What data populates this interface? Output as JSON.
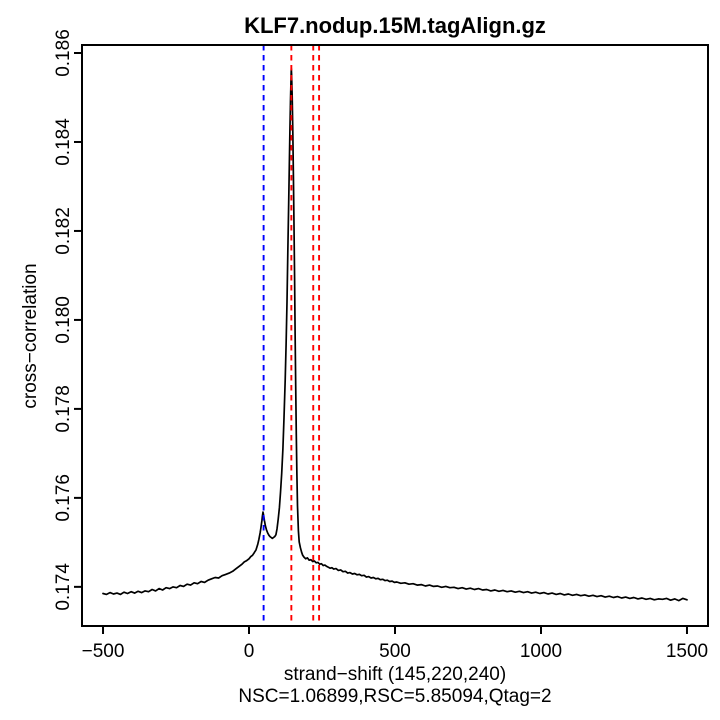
{
  "page": {
    "background": "#ffffff"
  },
  "chart_data": {
    "type": "line",
    "title": "KLF7.nodup.15M.tagAlign.gz",
    "xlabel": "strand−shift (145,220,240)",
    "xlabel_line2": "NSC=1.06899,RSC=5.85094,Qtag=2",
    "ylabel": "cross−correlation",
    "xlim": [
      -572,
      1572
    ],
    "ylim": [
      0.17312,
      0.18618
    ],
    "grid": false,
    "legend_position": "none",
    "axis_color": "#000000",
    "background_color": "#ffffff",
    "x_ticks": [
      -500,
      0,
      500,
      1000,
      1500
    ],
    "x_tick_labels": [
      "−500",
      "0",
      "500",
      "1000",
      "1500"
    ],
    "y_ticks": [
      0.174,
      0.176,
      0.178,
      0.18,
      0.182,
      0.184,
      0.186
    ],
    "y_tick_labels": [
      "0.174",
      "0.176",
      "0.178",
      "0.180",
      "0.182",
      "0.184",
      "0.186"
    ],
    "metrics": {
      "nsc": "1.06899",
      "rsc": "5.85094",
      "qtag": "2",
      "peak_strand_shifts": [
        145,
        220,
        240
      ],
      "phantom_peak_shift": 50
    },
    "vlines": [
      {
        "x": 50,
        "color": "#0000ff",
        "style": "dashed",
        "name": "phantom-peak-line"
      },
      {
        "x": 145,
        "color": "#ff0000",
        "style": "dashed",
        "name": "peak-shift-line-145"
      },
      {
        "x": 220,
        "color": "#ff0000",
        "style": "dashed",
        "name": "peak-shift-line-220"
      },
      {
        "x": 240,
        "color": "#ff0000",
        "style": "dashed",
        "name": "peak-shift-line-240"
      }
    ],
    "series": [
      {
        "name": "cross-correlation",
        "color": "#000000",
        "points": [
          [
            -500,
            0.17385
          ],
          [
            -488,
            0.17383
          ],
          [
            -476,
            0.17387
          ],
          [
            -464,
            0.17384
          ],
          [
            -452,
            0.17386
          ],
          [
            -440,
            0.17383
          ],
          [
            -428,
            0.17388
          ],
          [
            -416,
            0.17385
          ],
          [
            -404,
            0.17389
          ],
          [
            -392,
            0.17386
          ],
          [
            -380,
            0.1739
          ],
          [
            -368,
            0.17387
          ],
          [
            -356,
            0.17391
          ],
          [
            -344,
            0.17389
          ],
          [
            -332,
            0.17394
          ],
          [
            -320,
            0.17391
          ],
          [
            -308,
            0.17396
          ],
          [
            -296,
            0.17393
          ],
          [
            -284,
            0.17398
          ],
          [
            -272,
            0.17396
          ],
          [
            -260,
            0.174
          ],
          [
            -248,
            0.17398
          ],
          [
            -236,
            0.17403
          ],
          [
            -224,
            0.17401
          ],
          [
            -212,
            0.17406
          ],
          [
            -200,
            0.17404
          ],
          [
            -188,
            0.17409
          ],
          [
            -176,
            0.17407
          ],
          [
            -164,
            0.17412
          ],
          [
            -152,
            0.1741
          ],
          [
            -140,
            0.17415
          ],
          [
            -128,
            0.17418
          ],
          [
            -116,
            0.17421
          ],
          [
            -104,
            0.1742
          ],
          [
            -92,
            0.17425
          ],
          [
            -80,
            0.17428
          ],
          [
            -68,
            0.17431
          ],
          [
            -56,
            0.17435
          ],
          [
            -44,
            0.17441
          ],
          [
            -32,
            0.17447
          ],
          [
            -24,
            0.17451
          ],
          [
            -16,
            0.17456
          ],
          [
            -8,
            0.17459
          ],
          [
            0,
            0.17463
          ],
          [
            6,
            0.17468
          ],
          [
            12,
            0.17471
          ],
          [
            18,
            0.17477
          ],
          [
            24,
            0.17483
          ],
          [
            30,
            0.17496
          ],
          [
            34,
            0.17507
          ],
          [
            38,
            0.17521
          ],
          [
            41,
            0.17534
          ],
          [
            44,
            0.17549
          ],
          [
            46,
            0.17559
          ],
          [
            48,
            0.17568
          ],
          [
            50,
            0.17561
          ],
          [
            53,
            0.17548
          ],
          [
            56,
            0.17537
          ],
          [
            60,
            0.17528
          ],
          [
            64,
            0.17521
          ],
          [
            68,
            0.17516
          ],
          [
            72,
            0.17513
          ],
          [
            76,
            0.17511
          ],
          [
            80,
            0.17509
          ],
          [
            84,
            0.17511
          ],
          [
            88,
            0.17513
          ],
          [
            92,
            0.17517
          ],
          [
            96,
            0.1753
          ],
          [
            100,
            0.17552
          ],
          [
            104,
            0.17578
          ],
          [
            108,
            0.17612
          ],
          [
            112,
            0.17655
          ],
          [
            116,
            0.1771
          ],
          [
            120,
            0.1778
          ],
          [
            124,
            0.17865
          ],
          [
            127,
            0.17945
          ],
          [
            130,
            0.1804
          ],
          [
            133,
            0.1815
          ],
          [
            136,
            0.18265
          ],
          [
            138,
            0.18345
          ],
          [
            140,
            0.18425
          ],
          [
            142,
            0.18495
          ],
          [
            144,
            0.18548
          ],
          [
            145,
            0.18565
          ],
          [
            146,
            0.18552
          ],
          [
            148,
            0.18502
          ],
          [
            150,
            0.18425
          ],
          [
            152,
            0.18325
          ],
          [
            154,
            0.18212
          ],
          [
            156,
            0.18092
          ],
          [
            158,
            0.17972
          ],
          [
            160,
            0.17852
          ],
          [
            162,
            0.17742
          ],
          [
            164,
            0.17652
          ],
          [
            166,
            0.17582
          ],
          [
            169,
            0.17526
          ],
          [
            172,
            0.17501
          ],
          [
            176,
            0.17488
          ],
          [
            180,
            0.17478
          ],
          [
            184,
            0.17471
          ],
          [
            188,
            0.17467
          ],
          [
            194,
            0.17463
          ],
          [
            200,
            0.17465
          ],
          [
            206,
            0.1746
          ],
          [
            212,
            0.17461
          ],
          [
            218,
            0.17457
          ],
          [
            224,
            0.17458
          ],
          [
            230,
            0.17454
          ],
          [
            236,
            0.17455
          ],
          [
            242,
            0.17451
          ],
          [
            248,
            0.17452
          ],
          [
            254,
            0.17448
          ],
          [
            260,
            0.17449
          ],
          [
            266,
            0.17446
          ],
          [
            272,
            0.17444
          ],
          [
            278,
            0.17442
          ],
          [
            284,
            0.17443
          ],
          [
            290,
            0.1744
          ],
          [
            298,
            0.17441
          ],
          [
            306,
            0.17437
          ],
          [
            314,
            0.17438
          ],
          [
            322,
            0.17434
          ],
          [
            330,
            0.17435
          ],
          [
            338,
            0.17431
          ],
          [
            346,
            0.17432
          ],
          [
            354,
            0.17429
          ],
          [
            362,
            0.1743
          ],
          [
            370,
            0.17427
          ],
          [
            378,
            0.17428
          ],
          [
            386,
            0.17425
          ],
          [
            394,
            0.17426
          ],
          [
            402,
            0.17422
          ],
          [
            410,
            0.17423
          ],
          [
            418,
            0.1742
          ],
          [
            426,
            0.17421
          ],
          [
            434,
            0.17418
          ],
          [
            442,
            0.17419
          ],
          [
            450,
            0.17416
          ],
          [
            458,
            0.17417
          ],
          [
            466,
            0.17414
          ],
          [
            474,
            0.17415
          ],
          [
            482,
            0.17412
          ],
          [
            490,
            0.17413
          ],
          [
            498,
            0.1741
          ],
          [
            506,
            0.17411
          ],
          [
            520,
            0.17408
          ],
          [
            534,
            0.17409
          ],
          [
            548,
            0.17406
          ],
          [
            562,
            0.17407
          ],
          [
            576,
            0.17404
          ],
          [
            590,
            0.17405
          ],
          [
            604,
            0.17402
          ],
          [
            618,
            0.17404
          ],
          [
            632,
            0.17401
          ],
          [
            646,
            0.17402
          ],
          [
            660,
            0.17399
          ],
          [
            674,
            0.17401
          ],
          [
            688,
            0.17398
          ],
          [
            702,
            0.17399
          ],
          [
            716,
            0.17396
          ],
          [
            730,
            0.17398
          ],
          [
            744,
            0.17395
          ],
          [
            758,
            0.17397
          ],
          [
            772,
            0.17394
          ],
          [
            786,
            0.17396
          ],
          [
            800,
            0.17393
          ],
          [
            814,
            0.17394
          ],
          [
            828,
            0.17391
          ],
          [
            842,
            0.17393
          ],
          [
            856,
            0.1739
          ],
          [
            870,
            0.17392
          ],
          [
            884,
            0.17389
          ],
          [
            898,
            0.17391
          ],
          [
            912,
            0.17388
          ],
          [
            926,
            0.1739
          ],
          [
            940,
            0.17387
          ],
          [
            954,
            0.17389
          ],
          [
            968,
            0.17386
          ],
          [
            982,
            0.17388
          ],
          [
            996,
            0.17385
          ],
          [
            1010,
            0.17387
          ],
          [
            1024,
            0.17384
          ],
          [
            1038,
            0.17386
          ],
          [
            1052,
            0.17383
          ],
          [
            1066,
            0.17385
          ],
          [
            1080,
            0.17382
          ],
          [
            1094,
            0.17384
          ],
          [
            1108,
            0.17381
          ],
          [
            1122,
            0.17383
          ],
          [
            1136,
            0.1738
          ],
          [
            1150,
            0.17382
          ],
          [
            1164,
            0.17379
          ],
          [
            1178,
            0.17381
          ],
          [
            1192,
            0.17378
          ],
          [
            1206,
            0.1738
          ],
          [
            1220,
            0.17377
          ],
          [
            1234,
            0.17379
          ],
          [
            1248,
            0.17376
          ],
          [
            1262,
            0.17378
          ],
          [
            1276,
            0.17375
          ],
          [
            1290,
            0.17377
          ],
          [
            1304,
            0.17374
          ],
          [
            1318,
            0.17376
          ],
          [
            1332,
            0.17373
          ],
          [
            1346,
            0.17375
          ],
          [
            1360,
            0.17372
          ],
          [
            1374,
            0.17374
          ],
          [
            1388,
            0.17371
          ],
          [
            1402,
            0.17373
          ],
          [
            1416,
            0.17372
          ],
          [
            1430,
            0.17374
          ],
          [
            1444,
            0.1737
          ],
          [
            1458,
            0.17373
          ],
          [
            1472,
            0.17369
          ],
          [
            1486,
            0.17374
          ],
          [
            1500,
            0.17371
          ]
        ]
      }
    ]
  }
}
